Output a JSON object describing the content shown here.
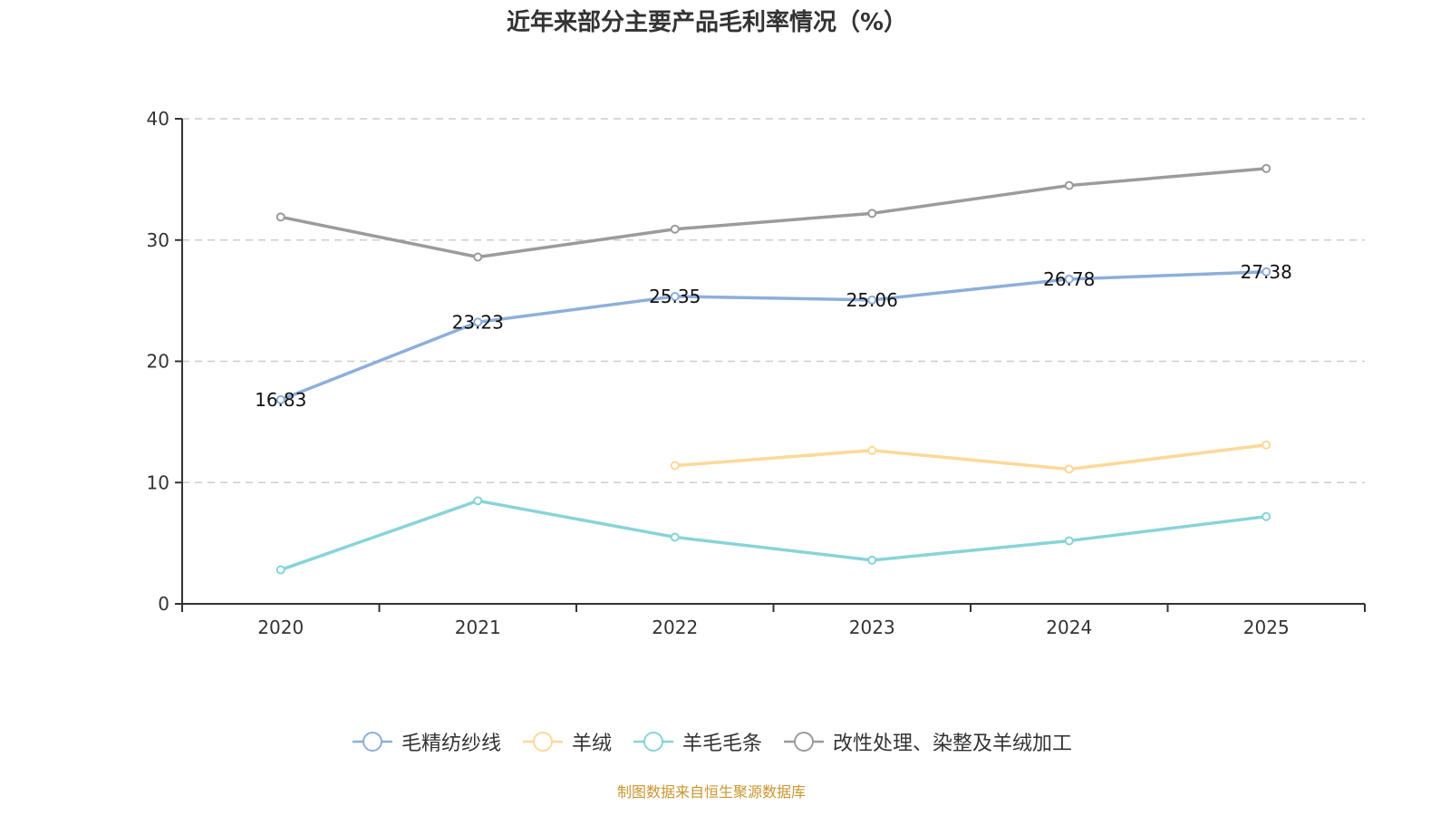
{
  "chart_data": {
    "type": "line",
    "title": "近年来部分主要产品毛利率情况（%）",
    "xlabel": "",
    "ylabel": "",
    "categories": [
      "2020",
      "2021",
      "2022",
      "2023",
      "2024",
      "2025"
    ],
    "ylim": [
      0,
      40
    ],
    "yticks": [
      0,
      10,
      20,
      30,
      40
    ],
    "grid": "horizontal-dashed",
    "legend_position": "bottom",
    "series": [
      {
        "name": "毛精纺纱线",
        "color": "#8eaedb",
        "values": [
          16.83,
          23.23,
          25.35,
          25.06,
          26.78,
          27.38
        ],
        "show_labels": true
      },
      {
        "name": "羊绒",
        "color": "#fdd898",
        "values": [
          null,
          null,
          11.4,
          12.65,
          11.1,
          13.1
        ],
        "show_labels": false
      },
      {
        "name": "羊毛毛条",
        "color": "#88d4d8",
        "values": [
          2.8,
          8.5,
          5.5,
          3.6,
          5.2,
          7.2
        ],
        "show_labels": false
      },
      {
        "name": "改性处理、染整及羊绒加工",
        "color": "#9b9b9b",
        "values": [
          31.9,
          28.6,
          30.9,
          32.2,
          34.5,
          35.9
        ],
        "show_labels": false
      }
    ]
  },
  "source_note": "制图数据来自恒生聚源数据库"
}
